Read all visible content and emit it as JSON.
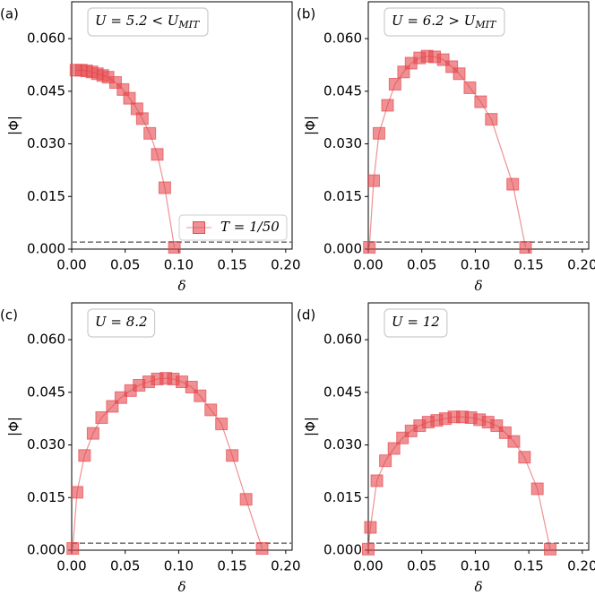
{
  "chart_data": [
    {
      "type": "line",
      "panel_label": "(a)",
      "annotation": {
        "text": "U = 5.2 < U",
        "sub": "MIT"
      },
      "xlabel": "δ",
      "ylabel": "|Φ|",
      "x": [
        0.004,
        0.009,
        0.014,
        0.019,
        0.024,
        0.029,
        0.034,
        0.041,
        0.048,
        0.054,
        0.061,
        0.066,
        0.073,
        0.08,
        0.087,
        0.096
      ],
      "series": [
        {
          "name": "T = 1/50",
          "color": "#e5484d",
          "values": [
            0.051,
            0.051,
            0.0508,
            0.0505,
            0.05,
            0.0495,
            0.049,
            0.0475,
            0.0455,
            0.043,
            0.04,
            0.0372,
            0.033,
            0.027,
            0.0175,
            0.0005
          ]
        }
      ],
      "legend": "lower right",
      "hline": 0.002,
      "xlim": [
        0,
        0.206
      ],
      "ylim": [
        0,
        0.0705
      ],
      "xticks": [
        {
          "value": 0,
          "label": "0.00"
        },
        {
          "value": 0.05,
          "label": "0.05"
        },
        {
          "value": 0.1,
          "label": "0.10"
        },
        {
          "value": 0.15,
          "label": "0.15"
        },
        {
          "value": 0.2,
          "label": "0.20"
        }
      ],
      "yticks": [
        {
          "value": 0,
          "label": "0.000"
        },
        {
          "value": 0.015,
          "label": "0.015"
        },
        {
          "value": 0.03,
          "label": "0.030"
        },
        {
          "value": 0.045,
          "label": "0.045"
        },
        {
          "value": 0.06,
          "label": "0.060"
        }
      ]
    },
    {
      "type": "line",
      "panel_label": "(b)",
      "annotation": {
        "text": "U = 6.2 > U",
        "sub": "MIT"
      },
      "xlabel": "δ",
      "ylabel": "|Φ|",
      "x": [
        0.001,
        0.005,
        0.01,
        0.018,
        0.025,
        0.033,
        0.04,
        0.048,
        0.055,
        0.062,
        0.07,
        0.078,
        0.085,
        0.095,
        0.105,
        0.115,
        0.135,
        0.147
      ],
      "series": [
        {
          "color": "#e5484d",
          "values": [
            0.0005,
            0.0195,
            0.033,
            0.041,
            0.047,
            0.0505,
            0.053,
            0.0545,
            0.055,
            0.0548,
            0.054,
            0.052,
            0.05,
            0.046,
            0.042,
            0.037,
            0.0185,
            0.0005
          ]
        }
      ],
      "hline": 0.002,
      "xlim": [
        0,
        0.206
      ],
      "ylim": [
        0,
        0.0705
      ],
      "xticks": [
        {
          "value": 0,
          "label": "0.00"
        },
        {
          "value": 0.05,
          "label": "0.05"
        },
        {
          "value": 0.1,
          "label": "0.10"
        },
        {
          "value": 0.15,
          "label": "0.15"
        },
        {
          "value": 0.2,
          "label": "0.20"
        }
      ],
      "yticks": [
        {
          "value": 0,
          "label": "0.000"
        },
        {
          "value": 0.015,
          "label": "0.015"
        },
        {
          "value": 0.03,
          "label": "0.030"
        },
        {
          "value": 0.045,
          "label": "0.045"
        },
        {
          "value": 0.06,
          "label": "0.060"
        }
      ]
    },
    {
      "type": "line",
      "panel_label": "(c)",
      "annotation": {
        "text": "U = 8.2"
      },
      "xlabel": "δ",
      "ylabel": "|Φ|",
      "x": [
        0.001,
        0.005,
        0.012,
        0.02,
        0.028,
        0.038,
        0.046,
        0.055,
        0.063,
        0.072,
        0.08,
        0.088,
        0.095,
        0.103,
        0.112,
        0.12,
        0.13,
        0.14,
        0.15,
        0.163,
        0.178
      ],
      "series": [
        {
          "color": "#e5484d",
          "values": [
            0.0005,
            0.0165,
            0.027,
            0.0333,
            0.0378,
            0.041,
            0.0435,
            0.0455,
            0.047,
            0.048,
            0.0488,
            0.049,
            0.0488,
            0.048,
            0.0465,
            0.044,
            0.04,
            0.036,
            0.027,
            0.0145,
            0.0005
          ]
        }
      ],
      "hline": 0.002,
      "xlim": [
        0,
        0.206
      ],
      "ylim": [
        0,
        0.0705
      ],
      "xticks": [
        {
          "value": 0,
          "label": "0.00"
        },
        {
          "value": 0.05,
          "label": "0.05"
        },
        {
          "value": 0.1,
          "label": "0.10"
        },
        {
          "value": 0.15,
          "label": "0.15"
        },
        {
          "value": 0.2,
          "label": "0.20"
        }
      ],
      "yticks": [
        {
          "value": 0,
          "label": "0.000"
        },
        {
          "value": 0.015,
          "label": "0.015"
        },
        {
          "value": 0.03,
          "label": "0.030"
        },
        {
          "value": 0.045,
          "label": "0.045"
        },
        {
          "value": 0.06,
          "label": "0.060"
        }
      ]
    },
    {
      "type": "line",
      "panel_label": "(d)",
      "annotation": {
        "text": "U = 12"
      },
      "xlabel": "δ",
      "ylabel": "|Φ|",
      "x": [
        0.0,
        0.002,
        0.008,
        0.016,
        0.024,
        0.032,
        0.04,
        0.048,
        0.056,
        0.064,
        0.072,
        0.08,
        0.088,
        0.096,
        0.104,
        0.112,
        0.12,
        0.128,
        0.136,
        0.146,
        0.158,
        0.17
      ],
      "series": [
        {
          "color": "#e5484d",
          "values": [
            0.0003,
            0.0065,
            0.0198,
            0.0255,
            0.029,
            0.032,
            0.034,
            0.0355,
            0.0365,
            0.037,
            0.0375,
            0.038,
            0.038,
            0.0378,
            0.0372,
            0.0365,
            0.0355,
            0.0335,
            0.031,
            0.0265,
            0.0175,
            0.0003
          ]
        }
      ],
      "hline": 0.002,
      "xlim": [
        0,
        0.206
      ],
      "ylim": [
        0,
        0.0705
      ],
      "xticks": [
        {
          "value": 0,
          "label": "0.00"
        },
        {
          "value": 0.05,
          "label": "0.05"
        },
        {
          "value": 0.1,
          "label": "0.10"
        },
        {
          "value": 0.15,
          "label": "0.15"
        },
        {
          "value": 0.2,
          "label": "0.20"
        }
      ],
      "yticks": [
        {
          "value": 0,
          "label": "0.000"
        },
        {
          "value": 0.015,
          "label": "0.015"
        },
        {
          "value": 0.03,
          "label": "0.030"
        },
        {
          "value": 0.045,
          "label": "0.045"
        },
        {
          "value": 0.06,
          "label": "0.060"
        }
      ]
    }
  ]
}
